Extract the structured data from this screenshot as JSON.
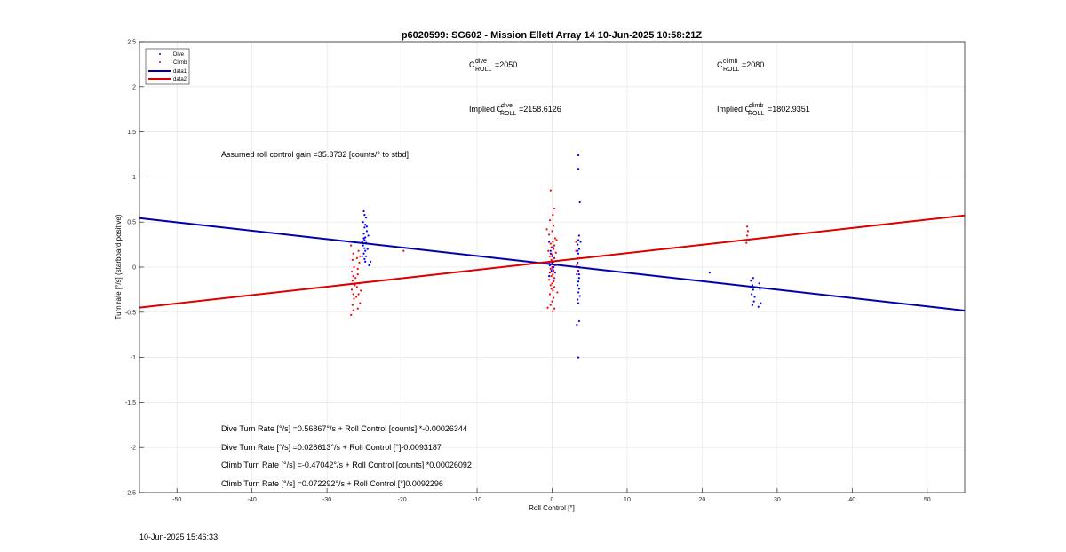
{
  "chart_data": {
    "type": "scatter",
    "title": "p6020599: SG602 - Mission Ellett Array 14 10-Jun-2025 10:58:21Z",
    "xlabel": "Roll Control [°]",
    "ylabel": "Turn rate [°/s] (starboard positive)",
    "xlim": [
      -55,
      55
    ],
    "ylim": [
      -2.5,
      2.5
    ],
    "xticks": [
      "-50",
      "-40",
      "-30",
      "-20",
      "-10",
      "0",
      "10",
      "20",
      "30",
      "40",
      "50"
    ],
    "yticks": [
      "2.5",
      "2",
      "1.5",
      "1",
      "0.5",
      "0",
      "-0.5",
      "-1",
      "-1.5",
      "-2",
      "-2.5"
    ],
    "grid": true,
    "legend_position": "top-left",
    "series": [
      {
        "name": "Dive",
        "kind": "points",
        "color": "#0000ff",
        "points": [
          [
            -25.1,
            0.62
          ],
          [
            -25.0,
            0.58
          ],
          [
            -24.8,
            0.55
          ],
          [
            -25.2,
            0.5
          ],
          [
            -24.9,
            0.47
          ],
          [
            -25.0,
            0.44
          ],
          [
            -24.7,
            0.4
          ],
          [
            -25.1,
            0.37
          ],
          [
            -24.9,
            0.33
          ],
          [
            -25.0,
            0.3
          ],
          [
            -24.8,
            0.27
          ],
          [
            -25.2,
            0.24
          ],
          [
            -25.0,
            0.21
          ],
          [
            -24.9,
            0.18
          ],
          [
            -25.1,
            0.15
          ],
          [
            -24.8,
            0.12
          ],
          [
            -25.0,
            0.09
          ],
          [
            -24.9,
            0.06
          ],
          [
            -24.2,
            0.06
          ],
          [
            -24.5,
            0.35
          ],
          [
            -24.6,
            0.2
          ],
          [
            -25.3,
            0.28
          ],
          [
            -24.7,
            0.45
          ],
          [
            -25.3,
            0.12
          ],
          [
            -24.4,
            0.02
          ],
          [
            -25.1,
            0.32
          ],
          [
            -0.4,
            0.28
          ],
          [
            0.1,
            0.22
          ],
          [
            -0.2,
            0.15
          ],
          [
            0.3,
            0.1
          ],
          [
            0.0,
            0.05
          ],
          [
            -0.3,
            0.02
          ],
          [
            0.2,
            0.0
          ],
          [
            0.1,
            -0.02
          ],
          [
            -0.1,
            -0.04
          ],
          [
            0.4,
            -0.06
          ],
          [
            -0.4,
            -0.1
          ],
          [
            0.2,
            -0.15
          ],
          [
            0.0,
            0.12
          ],
          [
            -0.2,
            0.18
          ],
          [
            3.5,
            1.24
          ],
          [
            3.5,
            1.09
          ],
          [
            3.7,
            0.72
          ],
          [
            3.6,
            0.35
          ],
          [
            3.5,
            0.3
          ],
          [
            3.4,
            0.25
          ],
          [
            3.6,
            0.2
          ],
          [
            3.5,
            0.15
          ],
          [
            3.7,
            0.1
          ],
          [
            3.4,
            0.05
          ],
          [
            3.6,
            0.0
          ],
          [
            3.5,
            -0.04
          ],
          [
            3.3,
            -0.08
          ],
          [
            3.6,
            -0.12
          ],
          [
            3.5,
            -0.16
          ],
          [
            3.4,
            -0.2
          ],
          [
            3.6,
            -0.24
          ],
          [
            3.5,
            -0.28
          ],
          [
            3.7,
            -0.32
          ],
          [
            3.4,
            -0.36
          ],
          [
            3.5,
            -0.4
          ],
          [
            3.6,
            -0.6
          ],
          [
            3.3,
            -0.64
          ],
          [
            3.5,
            -1.0
          ],
          [
            3.6,
            -0.08
          ],
          [
            3.4,
            0.18
          ],
          [
            3.8,
            0.28
          ],
          [
            21.0,
            -0.06
          ],
          [
            26.5,
            -0.15
          ],
          [
            26.7,
            -0.2
          ],
          [
            26.8,
            -0.25
          ],
          [
            26.6,
            -0.3
          ],
          [
            26.9,
            -0.38
          ],
          [
            26.7,
            -0.42
          ],
          [
            27.6,
            -0.18
          ],
          [
            27.7,
            -0.24
          ],
          [
            27.8,
            -0.4
          ],
          [
            27.5,
            -0.44
          ],
          [
            26.8,
            -0.12
          ],
          [
            27.0,
            -0.33
          ]
        ]
      },
      {
        "name": "Climb",
        "kind": "points",
        "color": "#ff0000",
        "points": [
          [
            -26.8,
            0.24
          ],
          [
            -26.5,
            0.15
          ],
          [
            -26.6,
            0.08
          ],
          [
            -26.4,
            0.0
          ],
          [
            -26.7,
            -0.05
          ],
          [
            -26.5,
            -0.1
          ],
          [
            -26.6,
            -0.15
          ],
          [
            -26.3,
            -0.2
          ],
          [
            -26.7,
            -0.25
          ],
          [
            -26.5,
            -0.3
          ],
          [
            -26.4,
            -0.35
          ],
          [
            -26.6,
            -0.42
          ],
          [
            -26.5,
            -0.48
          ],
          [
            -26.8,
            -0.53
          ],
          [
            -26.2,
            -0.12
          ],
          [
            -26.0,
            0.1
          ],
          [
            -25.8,
            0.18
          ],
          [
            -25.9,
            -0.02
          ],
          [
            -25.7,
            -0.18
          ],
          [
            -25.8,
            -0.3
          ],
          [
            -25.6,
            -0.4
          ],
          [
            -25.9,
            -0.08
          ],
          [
            -25.7,
            0.05
          ],
          [
            -26.1,
            -0.33
          ],
          [
            -26.0,
            -0.22
          ],
          [
            -25.9,
            -0.46
          ],
          [
            -25.5,
            -0.26
          ],
          [
            -25.6,
            0.12
          ],
          [
            -19.8,
            0.18
          ],
          [
            -0.2,
            0.85
          ],
          [
            0.3,
            0.65
          ],
          [
            0.1,
            0.58
          ],
          [
            -0.3,
            0.52
          ],
          [
            0.2,
            0.46
          ],
          [
            0.0,
            0.4
          ],
          [
            -0.4,
            0.36
          ],
          [
            0.4,
            0.32
          ],
          [
            0.1,
            0.28
          ],
          [
            -0.2,
            0.26
          ],
          [
            0.3,
            0.24
          ],
          [
            -0.1,
            0.22
          ],
          [
            0.2,
            0.2
          ],
          [
            -0.5,
            0.18
          ],
          [
            0.5,
            0.16
          ],
          [
            0.0,
            0.14
          ],
          [
            -0.3,
            0.12
          ],
          [
            0.3,
            0.1
          ],
          [
            -0.1,
            0.08
          ],
          [
            0.2,
            0.06
          ],
          [
            -0.4,
            0.04
          ],
          [
            0.4,
            0.02
          ],
          [
            0.0,
            0.0
          ],
          [
            -0.2,
            -0.02
          ],
          [
            0.2,
            -0.04
          ],
          [
            -0.3,
            -0.06
          ],
          [
            0.1,
            -0.08
          ],
          [
            -0.1,
            -0.1
          ],
          [
            0.3,
            -0.12
          ],
          [
            -0.4,
            -0.14
          ],
          [
            0.2,
            -0.16
          ],
          [
            0.0,
            -0.18
          ],
          [
            -0.2,
            -0.2
          ],
          [
            0.3,
            -0.22
          ],
          [
            -0.1,
            -0.24
          ],
          [
            0.1,
            -0.26
          ],
          [
            -0.3,
            -0.3
          ],
          [
            0.2,
            -0.34
          ],
          [
            0.0,
            -0.38
          ],
          [
            -0.2,
            -0.42
          ],
          [
            0.3,
            -0.46
          ],
          [
            0.1,
            -0.49
          ],
          [
            -0.6,
            -0.45
          ],
          [
            -0.7,
            0.42
          ],
          [
            0.6,
            0.3
          ],
          [
            0.7,
            -0.28
          ],
          [
            3.2,
            0.18
          ],
          [
            3.4,
            0.1
          ],
          [
            3.3,
            0.02
          ],
          [
            3.5,
            -0.05
          ],
          [
            3.2,
            0.28
          ],
          [
            26.0,
            0.45
          ],
          [
            26.1,
            0.4
          ],
          [
            26.0,
            0.35
          ],
          [
            25.9,
            0.27
          ]
        ]
      },
      {
        "name": "data1",
        "kind": "line",
        "color": "#0000aa",
        "points": [
          [
            -55,
            0.5435
          ],
          [
            55,
            -0.4818
          ]
        ]
      },
      {
        "name": "data2",
        "kind": "line",
        "color": "#dd0000",
        "points": [
          [
            -55,
            -0.449
          ],
          [
            55,
            0.5737
          ]
        ]
      }
    ],
    "annotations": {
      "c_dive": {
        "prefix": "C",
        "sup": "dive",
        "sub": "ROLL",
        "value": "=2050"
      },
      "c_climb": {
        "prefix": "C",
        "sup": "climb",
        "sub": "ROLL",
        "value": "=2080"
      },
      "implied_dive": {
        "prefix": "Implied C",
        "sup": "dive",
        "sub": "ROLL",
        "value": "=2158.6126"
      },
      "implied_climb": {
        "prefix": "Implied C",
        "sup": "climb",
        "sub": "ROLL",
        "value": "=1802.9351"
      },
      "gain": "Assumed roll control gain =35.3732 [counts/° to stbd]",
      "eq1": "Dive Turn Rate [°/s] =0.56867°/s + Roll Control [counts] *-0.00026344",
      "eq2": "Dive Turn Rate [°/s] =0.028613°/s + Roll Control [°]-0.0093187",
      "eq3": "Climb Turn Rate [°/s] =-0.47042°/s + Roll Control [counts] *0.00026092",
      "eq4": "Climb Turn Rate [°/s] =0.072292°/s + Roll Control [°]0.0092296"
    }
  },
  "footer_timestamp": "10-Jun-2025 15:46:33"
}
